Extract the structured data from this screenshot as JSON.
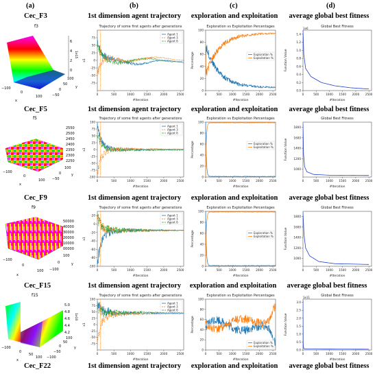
{
  "column_letters": [
    "(a)",
    "(b)",
    "(c)",
    "(d)"
  ],
  "column_titles": [
    "1st dimension agent trajectory",
    "exploration and exploitation",
    "average global best fitness"
  ],
  "row_labels": [
    "Cec_F3",
    "Cec_F5",
    "Cec_F9",
    "Cec_F15",
    "Cec_F22"
  ],
  "surface_titles": [
    "f3",
    "f5",
    "f9",
    "f15"
  ],
  "surface_axes": {
    "row1": {
      "x_ticks": [
        "−100",
        "0",
        "100"
      ],
      "y_ticks": [
        "100",
        "50",
        "0",
        "−50"
      ],
      "z_ticks": [
        "6",
        "4",
        "2",
        "0"
      ],
      "z_exp": "1e15",
      "xl": "x",
      "yl": "y"
    },
    "row2": {
      "x_ticks": [
        "−100",
        "0",
        "100"
      ],
      "y_ticks": [
        "100",
        "0",
        "−50"
      ],
      "z_ticks": [
        "2550",
        "2500",
        "2450",
        "2400",
        "2350",
        "2300",
        "2250"
      ],
      "xl": "x",
      "yl": "y"
    },
    "row3": {
      "x_ticks": [
        "−100",
        "0",
        "100"
      ],
      "y_ticks": [
        "100",
        "0",
        "−100"
      ],
      "z_ticks": [
        "50000",
        "40000",
        "30000",
        "20000",
        "10000",
        "00000"
      ],
      "xl": "x",
      "yl": "y"
    },
    "row4": {
      "x_ticks": [
        "−100",
        "0",
        "50",
        "100"
      ],
      "y_ticks": [
        "100",
        "50",
        "0",
        "−50",
        "−100"
      ],
      "z_ticks": [
        "5.0",
        "4.8",
        "4.6",
        "4.4",
        "4.2"
      ],
      "z_exp": "1e10",
      "xl": "x",
      "yl": "y"
    }
  },
  "chart_data": [
    {
      "type": "line",
      "panel": "row1-trajectory",
      "title": "Trajectory of some first agents after generations",
      "xlabel": "#Iteration",
      "ylabel": "x1",
      "xlim": [
        0,
        2600
      ],
      "ylim": [
        -100,
        100
      ],
      "x_ticks": [
        0,
        500,
        1000,
        1500,
        2000,
        2500
      ],
      "y_ticks": [
        -75,
        -50,
        -25,
        0,
        25,
        50,
        75
      ],
      "legend": "top-right",
      "series": [
        {
          "name": "Agent 1"
        },
        {
          "name": "Agent 3"
        },
        {
          "name": "Agent 6"
        }
      ]
    },
    {
      "type": "line",
      "panel": "row1-exploration",
      "title": "Exploration vs Exploitation Percentages",
      "xlabel": "#Iteration",
      "ylabel": "Percentage",
      "xlim": [
        0,
        2600
      ],
      "ylim": [
        0,
        100
      ],
      "x_ticks": [
        0,
        500,
        1000,
        1500,
        2000,
        2500
      ],
      "y_ticks": [
        0,
        20,
        40,
        60,
        80,
        100
      ],
      "legend": "center-right",
      "series": [
        {
          "name": "Exploration %"
        },
        {
          "name": "Exploitation %"
        }
      ]
    },
    {
      "type": "line",
      "panel": "row1-fitness",
      "title": "Global Best Fitness",
      "xlabel": "#Iteration",
      "ylabel": "Function Value",
      "xlim": [
        0,
        2600
      ],
      "ylim": [
        0,
        1.5
      ],
      "x_ticks": [
        0,
        500,
        1000,
        1500,
        2000,
        2500
      ],
      "y_ticks": [
        0.0,
        0.2,
        0.4,
        0.6,
        0.8,
        1.0,
        1.2,
        1.4
      ],
      "y_exp": "1e6",
      "series": [
        {
          "values": [
            [
              0,
              1.5
            ],
            [
              30,
              0.9
            ],
            [
              100,
              0.55
            ],
            [
              300,
              0.35
            ],
            [
              700,
              0.2
            ],
            [
              1200,
              0.12
            ],
            [
              1800,
              0.07
            ],
            [
              2500,
              0.04
            ]
          ]
        }
      ]
    },
    {
      "type": "line",
      "panel": "row2-trajectory",
      "title": "Trajectory of some first agents after generations",
      "xlabel": "#Iteration",
      "ylabel": "x1",
      "xlim": [
        0,
        2600
      ],
      "ylim": [
        -100,
        100
      ],
      "x_ticks": [
        0,
        500,
        1000,
        1500,
        2000,
        2500
      ],
      "y_ticks": [
        -100,
        -75,
        -50,
        -25,
        0,
        25,
        50,
        75,
        100
      ],
      "legend": "top-right",
      "series": [
        {
          "name": "Agent 1"
        },
        {
          "name": "Agent 3"
        },
        {
          "name": "Agent 6"
        }
      ]
    },
    {
      "type": "line",
      "panel": "row2-exploration",
      "title": "Exploration vs Exploitation Percentages",
      "xlabel": "#Iteration",
      "ylabel": "Percentage",
      "xlim": [
        0,
        2600
      ],
      "ylim": [
        0,
        100
      ],
      "x_ticks": [
        0,
        500,
        1000,
        1500,
        2000,
        2500
      ],
      "y_ticks": [
        0,
        20,
        40,
        60,
        80,
        100
      ],
      "legend": "center-right",
      "series": [
        {
          "name": "Exploration %"
        },
        {
          "name": "Exploitation %"
        }
      ]
    },
    {
      "type": "line",
      "panel": "row2-fitness",
      "title": "Global Best Fitness",
      "xlabel": "#Iteration",
      "ylabel": "Function Value",
      "xlim": [
        0,
        2600
      ],
      "ylim": [
        850,
        1900
      ],
      "x_ticks": [
        0,
        500,
        1000,
        1500,
        2000,
        2500
      ],
      "y_ticks": [
        1000,
        1200,
        1400,
        1600,
        1800
      ],
      "series": [
        {
          "values": [
            [
              0,
              1870
            ],
            [
              20,
              1300
            ],
            [
              60,
              1050
            ],
            [
              150,
              950
            ],
            [
              400,
              900
            ],
            [
              1000,
              885
            ],
            [
              2500,
              880
            ]
          ]
        }
      ]
    },
    {
      "type": "line",
      "panel": "row3-trajectory",
      "title": "Trajectory of some first agents after generations",
      "xlabel": "#Iteration",
      "ylabel": "x1",
      "xlim": [
        0,
        2600
      ],
      "ylim": [
        -100,
        30
      ],
      "x_ticks": [
        0,
        500,
        1000,
        1500,
        2000,
        2500
      ],
      "y_ticks": [
        -100,
        -80,
        -60,
        -40,
        -20,
        0,
        20
      ],
      "legend": "top-right",
      "series": [
        {
          "name": "Agent 1"
        },
        {
          "name": "Agent 3"
        },
        {
          "name": "Agent 6"
        }
      ]
    },
    {
      "type": "line",
      "panel": "row3-exploration",
      "title": "Exploration vs Exploitation Percentages",
      "xlabel": "#Iteration",
      "ylabel": "Percentage",
      "xlim": [
        0,
        2600
      ],
      "ylim": [
        0,
        100
      ],
      "x_ticks": [
        0,
        500,
        1000,
        1500,
        2000,
        2500
      ],
      "y_ticks": [
        0,
        20,
        40,
        60,
        80,
        100
      ],
      "legend": "center-right",
      "series": [
        {
          "name": "Exploration %"
        },
        {
          "name": "Exploitation %"
        }
      ]
    },
    {
      "type": "line",
      "panel": "row3-fitness",
      "title": "Global Best Fitness",
      "xlabel": "#Iteration",
      "ylabel": "Function Value",
      "xlim": [
        0,
        2600
      ],
      "ylim": [
        850,
        1900
      ],
      "x_ticks": [
        0,
        500,
        1000,
        1500,
        2000,
        2500
      ],
      "y_ticks": [
        1000,
        1200,
        1400,
        1600,
        1800
      ],
      "series": [
        {
          "values": [
            [
              0,
              1880
            ],
            [
              40,
              1450
            ],
            [
              100,
              1200
            ],
            [
              250,
              1050
            ],
            [
              600,
              940
            ],
            [
              1200,
              900
            ],
            [
              2500,
              885
            ]
          ]
        }
      ]
    },
    {
      "type": "line",
      "panel": "row4-trajectory",
      "title": "Trajectory of some first agents after generations",
      "xlabel": "#Iteration",
      "ylabel": "x1",
      "xlim": [
        0,
        2600
      ],
      "ylim": [
        -100,
        100
      ],
      "x_ticks": [
        0,
        500,
        1000,
        1500,
        2000,
        2500
      ],
      "y_ticks": [
        -75,
        -50,
        -25,
        0,
        25,
        50,
        75,
        100
      ],
      "legend": "top-right",
      "series": [
        {
          "name": "Agent 1"
        },
        {
          "name": "Agent 3"
        },
        {
          "name": "Agent 6"
        }
      ]
    },
    {
      "type": "line",
      "panel": "row4-exploration",
      "title": "Exploration vs Exploitation Percentages",
      "xlabel": "#Iteration",
      "ylabel": "Percentage",
      "xlim": [
        0,
        2600
      ],
      "ylim": [
        0,
        100
      ],
      "x_ticks": [
        0,
        500,
        1000,
        1500,
        2000,
        2500
      ],
      "y_ticks": [
        0,
        20,
        40,
        60,
        80,
        100
      ],
      "legend": "bottom-right",
      "series": [
        {
          "name": "Exploration %"
        },
        {
          "name": "Exploitation %"
        }
      ]
    },
    {
      "type": "line",
      "panel": "row4-fitness",
      "title": "Global Best Fitness",
      "xlabel": "#Iteration",
      "ylabel": "Function Value",
      "xlim": [
        0,
        2600
      ],
      "ylim": [
        0,
        3.2
      ],
      "x_ticks": [
        0,
        500,
        1000,
        1500,
        2000,
        2500
      ],
      "y_ticks": [
        0.0,
        0.5,
        1.0,
        1.5,
        2.0,
        2.5,
        3.0
      ],
      "y_exp": "1e11",
      "series": [
        {
          "values": [
            [
              0,
              3.1
            ],
            [
              8,
              0.4
            ],
            [
              25,
              0.1
            ],
            [
              100,
              0.06
            ],
            [
              2500,
              0.05
            ]
          ]
        }
      ]
    }
  ]
}
